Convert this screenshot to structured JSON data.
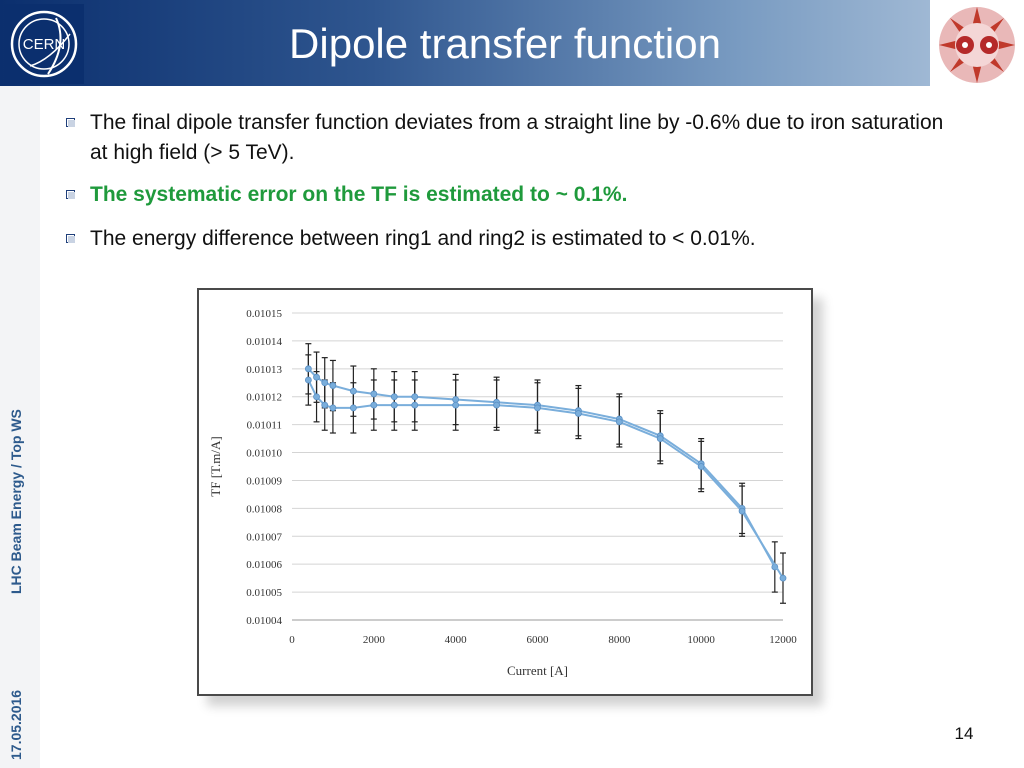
{
  "header": {
    "title": "Dipole transfer function",
    "logo_text": "CERN"
  },
  "sidebar": {
    "title": "LHC Beam Energy / Top WS",
    "date": "17.05.2016"
  },
  "bullets": [
    "The final dipole transfer function deviates from a straight line by -0.6% due to iron saturation at high field (> 5 TeV).",
    "The systematic error on the TF is estimated to ~ 0.1%.",
    "The energy difference between ring1 and ring2 is estimated to < 0.01%."
  ],
  "colors": {
    "accent_green": "#1f9a3c",
    "header_blue": "#0b2f6e",
    "series": "#7aaedb"
  },
  "page_number": "14",
  "chart_data": {
    "type": "line",
    "xlabel": "Current [A]",
    "ylabel": "TF [T.m/A]",
    "xlim": [
      0,
      12000
    ],
    "ylim": [
      0.01004,
      0.01015
    ],
    "x_ticks": [
      "0",
      "2000",
      "4000",
      "6000",
      "8000",
      "10000",
      "12000"
    ],
    "y_ticks": [
      "0.01004",
      "0.01005",
      "0.01006",
      "0.01007",
      "0.01008",
      "0.01009",
      "0.01010",
      "0.01011",
      "0.01012",
      "0.01013",
      "0.01014",
      "0.01015"
    ],
    "grid": "horizontal",
    "error_bar": 9e-06,
    "series": [
      {
        "x": [
          400,
          600,
          800,
          1000,
          1500,
          2000,
          2500,
          3000,
          4000,
          5000,
          6000,
          7000,
          8000,
          9000,
          10000,
          11000,
          11800
        ],
        "y": [
          0.01013,
          0.010127,
          0.010125,
          0.010124,
          0.010122,
          0.010121,
          0.01012,
          0.01012,
          0.010119,
          0.010118,
          0.010117,
          0.010115,
          0.010112,
          0.010106,
          0.010096,
          0.01008,
          0.010059
        ]
      },
      {
        "x": [
          400,
          600,
          800,
          1000,
          1500,
          2000,
          2500,
          3000,
          4000,
          5000,
          6000,
          7000,
          8000,
          9000,
          10000,
          11000,
          12000
        ],
        "y": [
          0.010126,
          0.01012,
          0.010117,
          0.010116,
          0.010116,
          0.010117,
          0.010117,
          0.010117,
          0.010117,
          0.010117,
          0.010116,
          0.010114,
          0.010111,
          0.010105,
          0.010095,
          0.010079,
          0.010055
        ]
      }
    ]
  }
}
